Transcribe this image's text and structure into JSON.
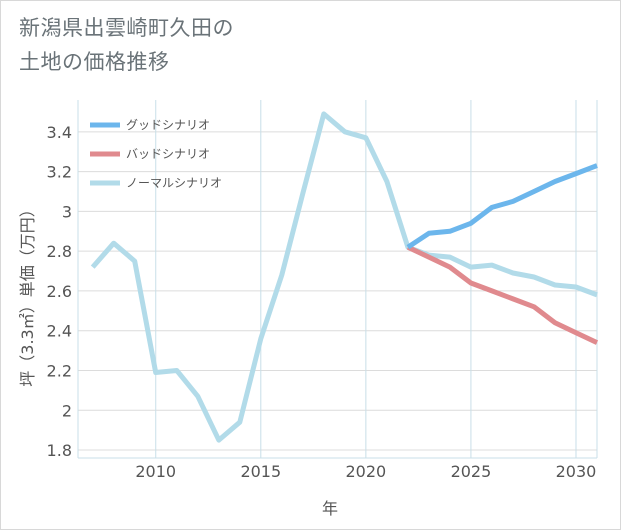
{
  "title_line1": "新潟県出雲崎町久田の",
  "title_line2": "土地の価格推移",
  "chart_data": {
    "type": "line",
    "title": "新潟県出雲崎町久田の土地の価格推移",
    "xlabel": "年",
    "ylabel": "坪（3.3㎡）単価（万円）",
    "xlim": [
      2006.3,
      2031
    ],
    "ylim": [
      1.76,
      3.56
    ],
    "xticks": [
      2010,
      2015,
      2020,
      2025,
      2030
    ],
    "yticks": [
      1.8,
      2,
      2.2,
      2.4,
      2.6,
      2.8,
      3,
      3.2,
      3.4
    ],
    "legend_position": "top-left",
    "series": [
      {
        "name": "グッドシナリオ",
        "color": "#6cb6ec",
        "x": [
          2022,
          2023,
          2024,
          2025,
          2026,
          2027,
          2028,
          2029,
          2030,
          2031
        ],
        "y": [
          2.82,
          2.89,
          2.9,
          2.94,
          3.02,
          3.05,
          3.1,
          3.15,
          3.19,
          3.23
        ]
      },
      {
        "name": "バッドシナリオ",
        "color": "#e08a8e",
        "x": [
          2022,
          2023,
          2024,
          2025,
          2026,
          2027,
          2028,
          2029,
          2030,
          2031
        ],
        "y": [
          2.82,
          2.77,
          2.72,
          2.64,
          2.6,
          2.56,
          2.52,
          2.44,
          2.39,
          2.34
        ]
      },
      {
        "name": "ノーマルシナリオ",
        "color": "#b2dbe9",
        "x": [
          2007,
          2008,
          2009,
          2010,
          2011,
          2012,
          2013,
          2014,
          2015,
          2016,
          2017,
          2018,
          2019,
          2020,
          2021,
          2022,
          2023,
          2024,
          2025,
          2026,
          2027,
          2028,
          2029,
          2030,
          2031
        ],
        "y": [
          2.72,
          2.84,
          2.75,
          2.19,
          2.2,
          2.07,
          1.85,
          1.94,
          2.36,
          2.68,
          3.09,
          3.49,
          3.4,
          3.37,
          3.15,
          2.82,
          2.78,
          2.77,
          2.72,
          2.73,
          2.69,
          2.67,
          2.63,
          2.62,
          2.58
        ]
      }
    ]
  }
}
